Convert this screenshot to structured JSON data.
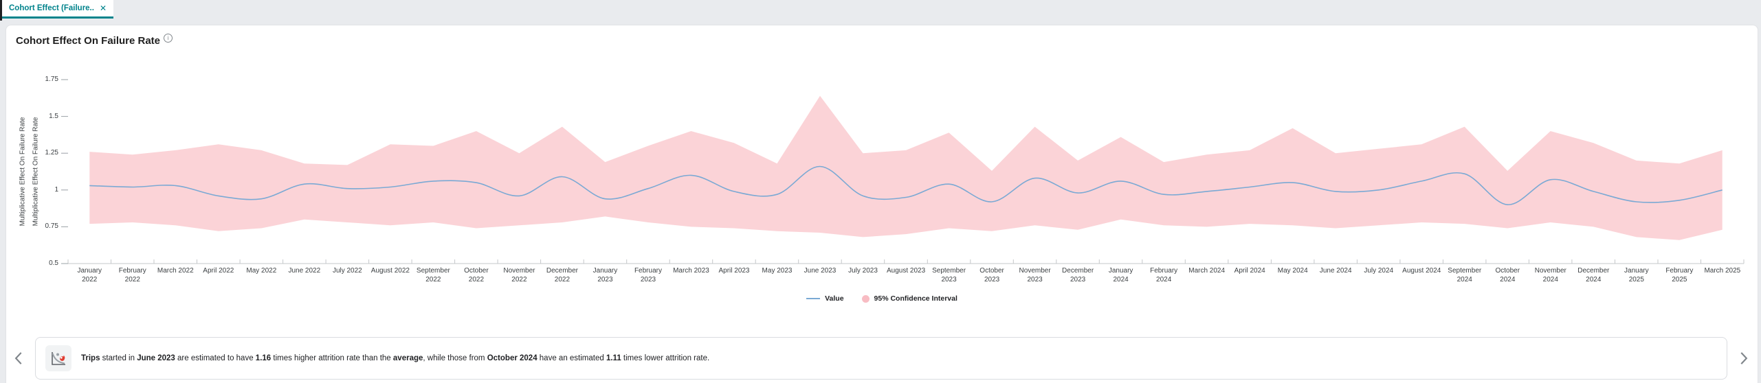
{
  "tab": {
    "label": "Cohort Effect (Failure...",
    "close_icon": "✕"
  },
  "page": {
    "title": "Cohort Effect On Failure Rate",
    "info_icon": "i"
  },
  "y_axis": {
    "title": "Multiplicative Effect On Failure Rate",
    "title_duplicate": "Multiplicative Effect On Failure Rate",
    "tick_labels": [
      "1.75",
      "1.5",
      "1.25",
      "1",
      "0.75",
      "0.5"
    ],
    "tick_values": [
      1.75,
      1.5,
      1.25,
      1,
      0.75,
      0.5
    ]
  },
  "legend": {
    "items": [
      {
        "label": "Value",
        "swatch": "line",
        "color": "#7aa9d4"
      },
      {
        "label": "95% Confidence Interval",
        "swatch": "dot",
        "color": "#f8bcc3"
      }
    ]
  },
  "insight": {
    "icon": "cohort-decay-chart-icon",
    "segments": [
      {
        "text": "Trips",
        "bold": true
      },
      {
        "text": " started in ",
        "bold": false
      },
      {
        "text": "June 2023",
        "bold": true
      },
      {
        "text": " are estimated to have ",
        "bold": false
      },
      {
        "text": "1.16",
        "bold": true
      },
      {
        "text": " times higher attrition rate than the ",
        "bold": false
      },
      {
        "text": "average",
        "bold": true
      },
      {
        "text": ", while those from ",
        "bold": false
      },
      {
        "text": "October 2024",
        "bold": true
      },
      {
        "text": " have an estimated ",
        "bold": false
      },
      {
        "text": "1.11",
        "bold": true
      },
      {
        "text": " times lower attrition rate.",
        "bold": false
      }
    ]
  },
  "chart_data": {
    "type": "line",
    "title": "Cohort Effect On Failure Rate",
    "ylabel": "Multiplicative Effect On Failure Rate",
    "xlabel": "",
    "ylim": [
      0.5,
      1.85
    ],
    "yticks": [
      0.5,
      0.75,
      1,
      1.25,
      1.5,
      1.75
    ],
    "grid": false,
    "legend_position": "bottom",
    "x": [
      "January 2022",
      "February 2022",
      "March 2022",
      "April 2022",
      "May 2022",
      "June 2022",
      "July 2022",
      "August 2022",
      "September 2022",
      "October 2022",
      "November 2022",
      "December 2022",
      "January 2023",
      "February 2023",
      "March 2023",
      "April 2023",
      "May 2023",
      "June 2023",
      "July 2023",
      "August 2023",
      "September 2023",
      "October 2023",
      "November 2023",
      "December 2023",
      "January 2024",
      "February 2024",
      "March 2024",
      "April 2024",
      "May 2024",
      "June 2024",
      "July 2024",
      "August 2024",
      "September 2024",
      "October 2024",
      "November 2024",
      "December 2024",
      "January 2025",
      "February 2025",
      "March 2025"
    ],
    "series": [
      {
        "name": "Value",
        "type": "line",
        "color": "#7aa9d4",
        "values": [
          1.03,
          1.02,
          1.03,
          0.96,
          0.94,
          1.04,
          1.01,
          1.02,
          1.06,
          1.05,
          0.96,
          1.09,
          0.94,
          1.01,
          1.1,
          0.99,
          0.97,
          1.16,
          0.96,
          0.95,
          1.04,
          0.92,
          1.08,
          0.98,
          1.06,
          0.97,
          0.99,
          1.02,
          1.05,
          0.99,
          1.0,
          1.06,
          1.11,
          0.9,
          1.07,
          0.99,
          0.92,
          0.93,
          1.0
        ]
      },
      {
        "name": "95% Confidence Interval",
        "type": "band",
        "color": "#fbd3d7",
        "upper": [
          1.26,
          1.24,
          1.27,
          1.31,
          1.27,
          1.18,
          1.17,
          1.31,
          1.3,
          1.4,
          1.25,
          1.43,
          1.19,
          1.3,
          1.4,
          1.32,
          1.18,
          1.64,
          1.25,
          1.27,
          1.39,
          1.13,
          1.43,
          1.2,
          1.36,
          1.19,
          1.24,
          1.27,
          1.42,
          1.25,
          1.28,
          1.31,
          1.43,
          1.13,
          1.4,
          1.32,
          1.2,
          1.18,
          1.27
        ],
        "lower": [
          0.77,
          0.78,
          0.76,
          0.72,
          0.74,
          0.8,
          0.78,
          0.76,
          0.78,
          0.74,
          0.76,
          0.78,
          0.82,
          0.78,
          0.75,
          0.74,
          0.72,
          0.71,
          0.68,
          0.7,
          0.74,
          0.72,
          0.76,
          0.73,
          0.8,
          0.76,
          0.75,
          0.77,
          0.76,
          0.74,
          0.76,
          0.78,
          0.77,
          0.74,
          0.78,
          0.75,
          0.68,
          0.66,
          0.73
        ]
      }
    ]
  }
}
